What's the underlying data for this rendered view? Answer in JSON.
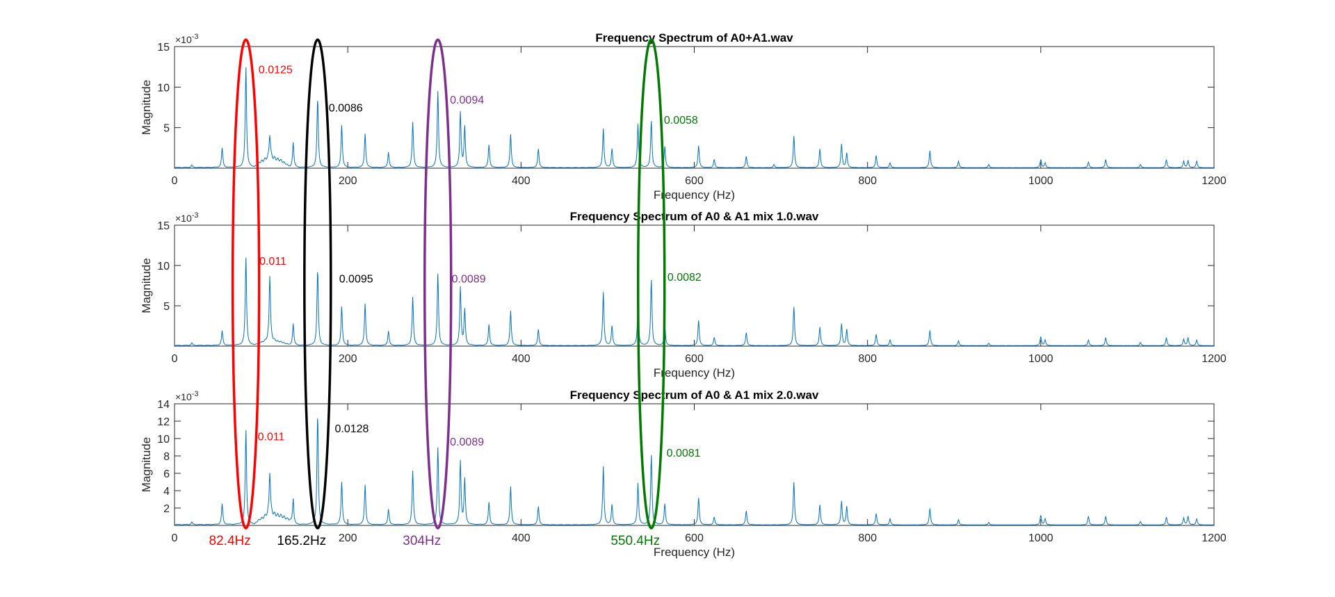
{
  "chart_data": [
    {
      "type": "line",
      "title": "Frequency Spectrum of A0+A1.wav",
      "xlabel": "Frequency (Hz)",
      "ylabel": "Magnitude",
      "y_exponent_label": "×10",
      "y_exponent": "-3",
      "xlim": [
        0,
        1200
      ],
      "ylim": [
        0,
        15
      ],
      "xticks": [
        0,
        200,
        400,
        600,
        800,
        1000,
        1200
      ],
      "yticks": [
        5,
        10,
        15
      ],
      "series": [
        {
          "color": "#0072BD",
          "peaks": [
            [
              20,
              0.3
            ],
            [
              55,
              2.4
            ],
            [
              82.4,
              12.5
            ],
            [
              110,
              3.1
            ],
            [
              137,
              3.1
            ],
            [
              165.2,
              8.6
            ],
            [
              193,
              5.2
            ],
            [
              220,
              4.2
            ],
            [
              247,
              1.9
            ],
            [
              275,
              5.6
            ],
            [
              304,
              9.4
            ],
            [
              330,
              6.8
            ],
            [
              335,
              5.0
            ],
            [
              363,
              2.8
            ],
            [
              388,
              4.1
            ],
            [
              420,
              2.3
            ],
            [
              495,
              4.8
            ],
            [
              505,
              2.3
            ],
            [
              535,
              5.4
            ],
            [
              550.4,
              5.8
            ],
            [
              566,
              2.6
            ],
            [
              605,
              2.7
            ],
            [
              623,
              1.0
            ],
            [
              660,
              1.4
            ],
            [
              692,
              0.4
            ],
            [
              715,
              3.9
            ],
            [
              745,
              2.3
            ],
            [
              770,
              2.9
            ],
            [
              776,
              1.8
            ],
            [
              810,
              1.5
            ],
            [
              826,
              0.6
            ],
            [
              872,
              2.1
            ],
            [
              905,
              0.8
            ],
            [
              940,
              0.4
            ],
            [
              1000,
              1.0
            ],
            [
              1005,
              0.6
            ],
            [
              1055,
              0.7
            ],
            [
              1075,
              1.0
            ],
            [
              1115,
              0.4
            ],
            [
              1145,
              1.0
            ],
            [
              1165,
              0.8
            ],
            [
              1170,
              0.9
            ],
            [
              1180,
              0.8
            ]
          ],
          "bump": [
            100,
            125,
            1.3
          ]
        }
      ],
      "annotations": [
        {
          "text": "0.0125",
          "x": 97,
          "y": 12.2,
          "color": "#FF0000"
        },
        {
          "text": "0.0086",
          "x": 178,
          "y": 7.5,
          "color": "#000000"
        },
        {
          "text": "0.0094",
          "x": 318,
          "y": 8.5,
          "color": "#7E2F8E"
        },
        {
          "text": "0.0058",
          "x": 565,
          "y": 6.0,
          "color": "#007A00"
        }
      ]
    },
    {
      "type": "line",
      "title": "Frequency Spectrum of A0 & A1 mix 1.0.wav",
      "xlabel": "Frequency (Hz)",
      "ylabel": "Magnitude",
      "y_exponent_label": "×10",
      "y_exponent": "-3",
      "xlim": [
        0,
        1200
      ],
      "ylim": [
        0,
        15
      ],
      "xticks": [
        0,
        200,
        400,
        600,
        800,
        1000,
        1200
      ],
      "yticks": [
        5,
        10,
        15
      ],
      "series": [
        {
          "color": "#0072BD",
          "peaks": [
            [
              20,
              0.3
            ],
            [
              55,
              1.8
            ],
            [
              82.4,
              11.0
            ],
            [
              110,
              8.2
            ],
            [
              137,
              2.7
            ],
            [
              165.2,
              9.5
            ],
            [
              193,
              4.8
            ],
            [
              220,
              5.2
            ],
            [
              247,
              1.8
            ],
            [
              275,
              6.0
            ],
            [
              304,
              8.9
            ],
            [
              330,
              7.2
            ],
            [
              335,
              4.4
            ],
            [
              363,
              2.6
            ],
            [
              388,
              4.3
            ],
            [
              420,
              2.0
            ],
            [
              495,
              6.6
            ],
            [
              505,
              2.4
            ],
            [
              535,
              5.0
            ],
            [
              550.4,
              8.2
            ],
            [
              566,
              2.4
            ],
            [
              605,
              3.1
            ],
            [
              623,
              1.0
            ],
            [
              660,
              1.6
            ],
            [
              715,
              4.8
            ],
            [
              745,
              2.3
            ],
            [
              770,
              2.7
            ],
            [
              776,
              2.0
            ],
            [
              810,
              1.4
            ],
            [
              826,
              0.7
            ],
            [
              872,
              1.9
            ],
            [
              905,
              0.6
            ],
            [
              940,
              0.3
            ],
            [
              1000,
              1.1
            ],
            [
              1005,
              0.7
            ],
            [
              1055,
              0.7
            ],
            [
              1075,
              1.0
            ],
            [
              1115,
              0.4
            ],
            [
              1145,
              1.0
            ],
            [
              1165,
              0.8
            ],
            [
              1170,
              1.0
            ],
            [
              1180,
              0.7
            ]
          ],
          "bump": [
            100,
            125,
            0.6
          ]
        }
      ],
      "annotations": [
        {
          "text": "0.011",
          "x": 98,
          "y": 10.6,
          "color": "#FF0000"
        },
        {
          "text": "0.0095",
          "x": 190,
          "y": 8.4,
          "color": "#000000"
        },
        {
          "text": "0.0089",
          "x": 320,
          "y": 8.4,
          "color": "#7E2F8E"
        },
        {
          "text": "0.0082",
          "x": 569,
          "y": 8.6,
          "color": "#007A00"
        }
      ]
    },
    {
      "type": "line",
      "title": "Frequency Spectrum of A0 & A1 mix 2.0.wav",
      "xlabel": "Frequency (Hz)",
      "ylabel": "Magnitude",
      "y_exponent_label": "×10",
      "y_exponent": "-3",
      "xlim": [
        0,
        1200
      ],
      "ylim": [
        0,
        14
      ],
      "xticks": [
        0,
        200,
        400,
        600,
        800,
        1000,
        1200
      ],
      "yticks": [
        2,
        4,
        6,
        8,
        10,
        12,
        14
      ],
      "series": [
        {
          "color": "#0072BD",
          "peaks": [
            [
              20,
              0.3
            ],
            [
              55,
              2.4
            ],
            [
              82.4,
              11.0
            ],
            [
              110,
              5.1
            ],
            [
              137,
              2.9
            ],
            [
              165.2,
              12.8
            ],
            [
              193,
              4.9
            ],
            [
              220,
              4.6
            ],
            [
              247,
              1.8
            ],
            [
              275,
              6.2
            ],
            [
              304,
              8.9
            ],
            [
              330,
              7.3
            ],
            [
              335,
              5.2
            ],
            [
              363,
              2.6
            ],
            [
              388,
              4.4
            ],
            [
              420,
              2.1
            ],
            [
              495,
              6.7
            ],
            [
              505,
              2.3
            ],
            [
              535,
              4.8
            ],
            [
              550.4,
              8.1
            ],
            [
              566,
              2.4
            ],
            [
              605,
              3.1
            ],
            [
              623,
              0.9
            ],
            [
              660,
              1.6
            ],
            [
              715,
              4.9
            ],
            [
              745,
              2.3
            ],
            [
              770,
              2.7
            ],
            [
              776,
              2.1
            ],
            [
              810,
              1.3
            ],
            [
              826,
              0.7
            ],
            [
              872,
              1.9
            ],
            [
              905,
              0.6
            ],
            [
              940,
              0.3
            ],
            [
              1000,
              1.1
            ],
            [
              1005,
              0.7
            ],
            [
              1055,
              1.0
            ],
            [
              1075,
              1.0
            ],
            [
              1115,
              0.4
            ],
            [
              1145,
              0.9
            ],
            [
              1165,
              0.8
            ],
            [
              1170,
              1.0
            ],
            [
              1180,
              0.7
            ]
          ],
          "bump": [
            100,
            130,
            1.3
          ]
        }
      ],
      "annotations": [
        {
          "text": "0.011",
          "x": 96,
          "y": 10.3,
          "color": "#FF0000"
        },
        {
          "text": "0.0128",
          "x": 185,
          "y": 11.2,
          "color": "#000000"
        },
        {
          "text": "0.0089",
          "x": 318,
          "y": 9.7,
          "color": "#7E2F8E"
        },
        {
          "text": "0.0081",
          "x": 568,
          "y": 8.4,
          "color": "#007A00"
        }
      ]
    }
  ],
  "highlights": [
    {
      "label": "82.4Hz",
      "freq": 82.4,
      "color": "#FF0000"
    },
    {
      "label": "165.2Hz",
      "freq": 165.2,
      "color": "#000000"
    },
    {
      "label": "304Hz",
      "freq": 304,
      "color": "#7E2F8E"
    },
    {
      "label": "550.4Hz",
      "freq": 550.4,
      "color": "#007A00"
    }
  ]
}
